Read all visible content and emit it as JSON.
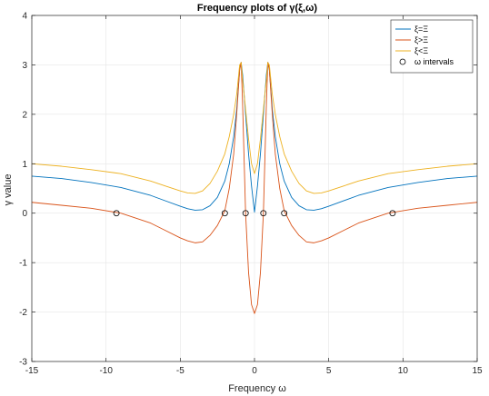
{
  "chart_data": {
    "type": "line",
    "title": "Frequency plots of γ(ξ,ω)",
    "xlabel": "Frequency ω",
    "ylabel": "γ value",
    "xlim": [
      -15,
      15
    ],
    "ylim": [
      -3,
      4
    ],
    "xticks": [
      -15,
      -10,
      -5,
      0,
      5,
      10,
      15
    ],
    "yticks": [
      -3,
      -2,
      -1,
      0,
      1,
      2,
      3,
      4
    ],
    "grid": true,
    "legend_position": "top-right",
    "x": [
      -15,
      -13,
      -11,
      -9,
      -7,
      -6,
      -5,
      -4.5,
      -4,
      -3.5,
      -3,
      -2.5,
      -2,
      -1.7,
      -1.4,
      -1.2,
      -1,
      -0.9,
      -0.8,
      -0.6,
      -0.4,
      -0.2,
      0,
      0.2,
      0.4,
      0.6,
      0.8,
      0.9,
      1,
      1.2,
      1.4,
      1.7,
      2,
      2.5,
      3,
      3.5,
      4,
      4.5,
      5,
      6,
      7,
      9,
      11,
      13,
      15
    ],
    "series": [
      {
        "name": "ξ=Ξ",
        "color": "#0072BD",
        "values": [
          0.75,
          0.7,
          0.62,
          0.52,
          0.36,
          0.25,
          0.14,
          0.09,
          0.06,
          0.07,
          0.15,
          0.32,
          0.65,
          1.0,
          1.55,
          2.1,
          2.9,
          3.05,
          2.8,
          2.0,
          1.2,
          0.55,
          0.02,
          0.55,
          1.2,
          2.0,
          2.8,
          3.05,
          2.9,
          2.1,
          1.55,
          1.0,
          0.65,
          0.32,
          0.15,
          0.07,
          0.06,
          0.09,
          0.14,
          0.25,
          0.36,
          0.52,
          0.62,
          0.7,
          0.75
        ]
      },
      {
        "name": "ξ>Ξ",
        "color": "#D95319",
        "values": [
          0.22,
          0.16,
          0.1,
          0.0,
          -0.2,
          -0.35,
          -0.5,
          -0.56,
          -0.6,
          -0.58,
          -0.45,
          -0.25,
          0.05,
          0.5,
          1.2,
          2.0,
          2.9,
          3.05,
          2.2,
          0.0,
          -1.2,
          -1.85,
          -2.03,
          -1.85,
          -1.2,
          0.0,
          2.2,
          3.05,
          2.9,
          2.0,
          1.2,
          0.5,
          0.05,
          -0.25,
          -0.45,
          -0.58,
          -0.6,
          -0.56,
          -0.5,
          -0.35,
          -0.2,
          0.0,
          0.1,
          0.16,
          0.22
        ]
      },
      {
        "name": "ξ<Ξ",
        "color": "#EDB120",
        "values": [
          1.0,
          0.95,
          0.88,
          0.8,
          0.65,
          0.55,
          0.45,
          0.41,
          0.4,
          0.45,
          0.6,
          0.85,
          1.2,
          1.55,
          2.0,
          2.4,
          3.0,
          3.05,
          2.7,
          2.1,
          1.5,
          1.0,
          0.8,
          1.0,
          1.5,
          2.1,
          2.7,
          3.05,
          3.0,
          2.4,
          2.0,
          1.55,
          1.2,
          0.85,
          0.6,
          0.45,
          0.4,
          0.41,
          0.45,
          0.55,
          0.65,
          0.8,
          0.88,
          0.95,
          1.0
        ]
      }
    ],
    "markers": {
      "name": "ω intervals",
      "style": "circle",
      "points": [
        [
          -9.3,
          0
        ],
        [
          -2.0,
          0
        ],
        [
          -0.6,
          0
        ],
        [
          0.6,
          0
        ],
        [
          2.0,
          0
        ],
        [
          9.3,
          0
        ]
      ]
    }
  }
}
